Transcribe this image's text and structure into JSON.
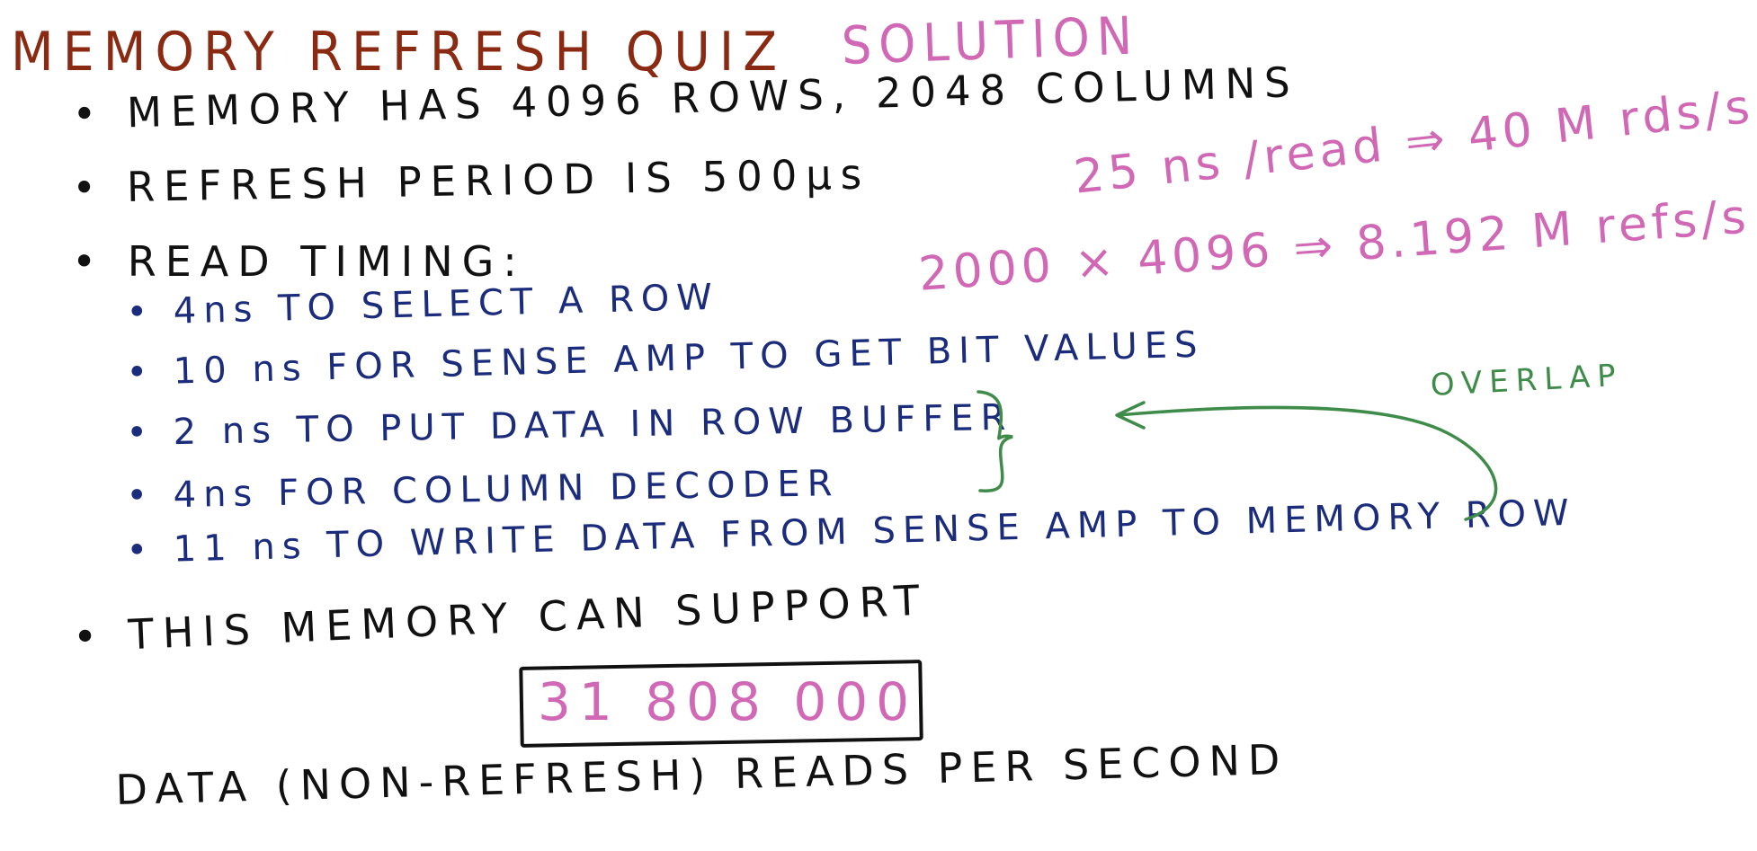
{
  "colors": {
    "title": "#8b2a12",
    "solution": "#d168b6",
    "black_ink": "#111111",
    "blue_ink": "#1c2c7c",
    "pink_ink": "#d168b6",
    "green_ink": "#3f8b4a"
  },
  "title": "MEMORY REFRESH QUIZ",
  "solution_label": "SOLUTION",
  "bullets": [
    "• MEMORY HAS 4096 ROWS, 2048 COLUMNS",
    "• REFRESH PERIOD IS 500μs",
    "• READ TIMING:"
  ],
  "read_timing": [
    "• 4ns TO SELECT A ROW",
    "• 10 ns FOR SENSE AMP TO GET BIT VALUES",
    "• 2 ns TO PUT DATA IN ROW BUFFER",
    "• 4ns FOR COLUMN DECODER",
    "• 11 ns TO WRITE DATA FROM SENSE AMP TO MEMORY ROW"
  ],
  "support_line": "• THIS MEMORY CAN SUPPORT",
  "answer_value": "31 808 000",
  "footer": "DATA (NON-REFRESH) READS PER SECOND",
  "notes": {
    "reads": "25 ns /read ⇒ 40 M rds/s",
    "refreshes": "2000 × 4096 ⇒ 8.192 M refs/s"
  },
  "overlap_label": "OVERLAP"
}
